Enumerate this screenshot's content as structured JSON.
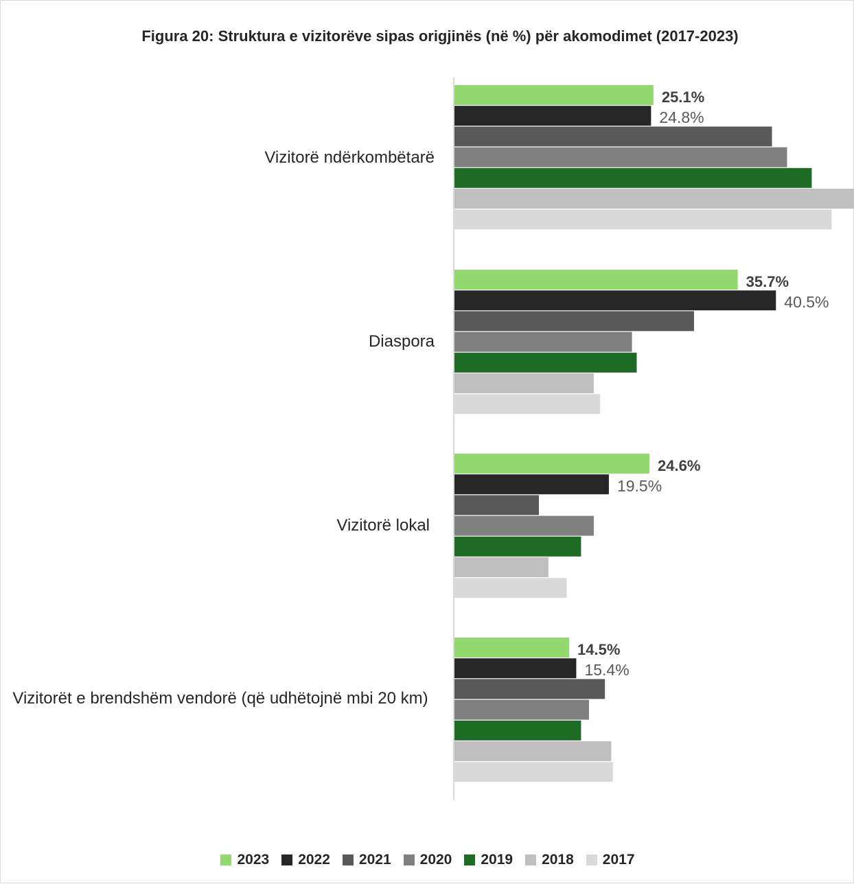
{
  "chart_data": {
    "type": "bar",
    "orientation": "horizontal",
    "title": "Figura 20: Struktura e vizitorëve sipas origjinës (në %) për akomodimet (2017-2023)",
    "categories": [
      "Vizitorë ndërkombëtarë",
      "Diaspora",
      "Vizitorë lokal",
      "Vizitorët e brendshëm vendorë (që udhëtojnë mbi 20 km)"
    ],
    "series": [
      {
        "name": "2023",
        "color": "#92d96f",
        "values": [
          25.1,
          35.7,
          24.6,
          14.5
        ],
        "labels": [
          "25.1%",
          "35.7%",
          "24.6%",
          "14.5%"
        ],
        "label_bold": true
      },
      {
        "name": "2022",
        "color": "#262626",
        "values": [
          24.8,
          40.5,
          19.5,
          15.4
        ],
        "labels": [
          "24.8%",
          "40.5%",
          "19.5%",
          "15.4%"
        ],
        "label_bold": false
      },
      {
        "name": "2021",
        "color": "#595959",
        "values": [
          40.0,
          30.2,
          10.7,
          19.0
        ]
      },
      {
        "name": "2020",
        "color": "#808080",
        "values": [
          41.9,
          22.4,
          17.6,
          17.0
        ]
      },
      {
        "name": "2019",
        "color": "#1e6b25",
        "values": [
          45.0,
          23.0,
          16.0,
          16.0
        ]
      },
      {
        "name": "2018",
        "color": "#bfbfbf",
        "values": [
          50.4,
          17.6,
          11.9,
          19.8
        ]
      },
      {
        "name": "2017",
        "color": "#d9d9d9",
        "values": [
          47.5,
          18.4,
          14.2,
          20.0
        ]
      }
    ],
    "xlim": [
      0,
      50.4
    ],
    "grid": false,
    "legend_position": "bottom"
  }
}
